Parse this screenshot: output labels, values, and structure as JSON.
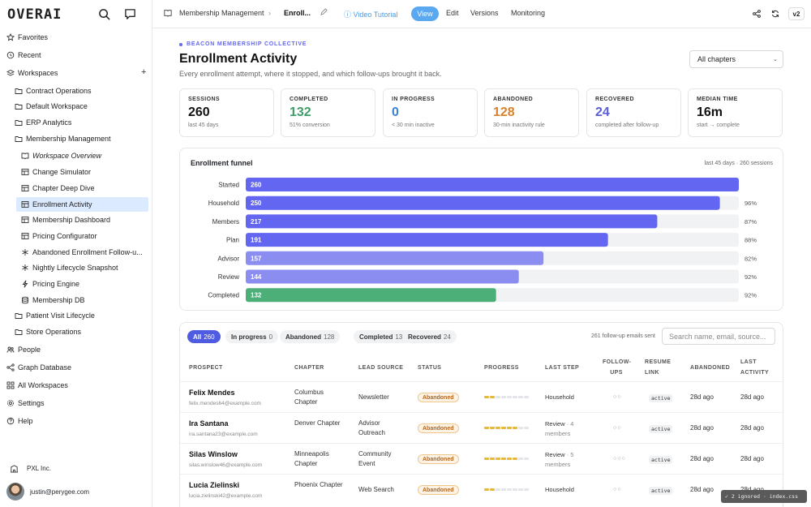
{
  "app": {
    "logo": "OVERAI"
  },
  "sidebar": {
    "items": [
      {
        "label": "Favorites",
        "icon": "star-icon"
      },
      {
        "label": "Recent",
        "icon": "clock-icon"
      },
      {
        "label": "Workspaces",
        "icon": "stack-icon"
      },
      {
        "label": "Contract Operations",
        "icon": "folder-icon"
      },
      {
        "label": "Default Workspace",
        "icon": "folder-icon"
      },
      {
        "label": "ERP Analytics",
        "icon": "folder-icon"
      },
      {
        "label": "Membership Management",
        "icon": "folder-icon"
      },
      {
        "label": "Workspace Overview",
        "icon": "book-icon"
      },
      {
        "label": "Change Simulator",
        "icon": "table-icon"
      },
      {
        "label": "Chapter Deep Dive",
        "icon": "table-icon"
      },
      {
        "label": "Enrollment Activity",
        "icon": "table-icon"
      },
      {
        "label": "Membership Dashboard",
        "icon": "table-icon"
      },
      {
        "label": "Pricing Configurator",
        "icon": "table-icon"
      },
      {
        "label": "Abandoned Enrollment Follow-u...",
        "icon": "workflow-icon"
      },
      {
        "label": "Nightly Lifecycle Snapshot",
        "icon": "workflow-icon"
      },
      {
        "label": "Pricing Engine",
        "icon": "bolt-icon"
      },
      {
        "label": "Membership DB",
        "icon": "database-icon"
      },
      {
        "label": "Patient Visit Lifecycle",
        "icon": "folder-icon"
      },
      {
        "label": "Store Operations",
        "icon": "folder-icon"
      },
      {
        "label": "People",
        "icon": "people-icon"
      },
      {
        "label": "Graph Database",
        "icon": "graph-icon"
      },
      {
        "label": "All Workspaces",
        "icon": "grid-icon"
      },
      {
        "label": "Settings",
        "icon": "gear-icon"
      },
      {
        "label": "Help",
        "icon": "help-icon"
      }
    ],
    "org": "PXL Inc.",
    "user": "justin@perygee.com"
  },
  "topbar": {
    "breadcrumb_parent": "Membership Management",
    "breadcrumb_current": "Enroll...",
    "video": "Video Tutorial",
    "tabs": [
      "View",
      "Edit",
      "Versions",
      "Monitoring"
    ],
    "version": "v2"
  },
  "header": {
    "eyebrow": "BEACON MEMBERSHIP COLLECTIVE",
    "title": "Enrollment Activity",
    "subtitle": "Every enrollment attempt, where it stopped, and which follow-ups brought it back.",
    "chapter_select": "All chapters"
  },
  "stats": [
    {
      "label": "SESSIONS",
      "value": "260",
      "sub": "last 45 days",
      "color": "#111111"
    },
    {
      "label": "COMPLETED",
      "value": "132",
      "sub": "51% conversion",
      "color": "#3f9d68"
    },
    {
      "label": "IN PROGRESS",
      "value": "0",
      "sub": "< 30 min inactive",
      "color": "#3b82d6"
    },
    {
      "label": "ABANDONED",
      "value": "128",
      "sub": "30-min inactivity rule",
      "color": "#d9822b"
    },
    {
      "label": "RECOVERED",
      "value": "24",
      "sub": "completed after follow-up",
      "color": "#5b5fd6"
    },
    {
      "label": "MEDIAN TIME",
      "value": "16m",
      "sub": "start → complete",
      "color": "#111111"
    }
  ],
  "funnel": {
    "title": "Enrollment funnel",
    "meta": "last 45 days · 260 sessions"
  },
  "chart_data": {
    "type": "bar",
    "orientation": "horizontal",
    "title": "Enrollment funnel",
    "categories": [
      "Started",
      "Household",
      "Members",
      "Plan",
      "Advisor",
      "Review",
      "Completed"
    ],
    "values": [
      260,
      250,
      217,
      191,
      157,
      144,
      132
    ],
    "step_conversion": [
      "",
      "96%",
      "87%",
      "88%",
      "82%",
      "92%",
      "92%"
    ],
    "xlim": [
      0,
      260
    ],
    "colors": {
      "bar": "#6366f1",
      "bar_fade": "#8b8ef0",
      "completed": "#4caf78",
      "track": "#f1f2f4"
    }
  },
  "filters": {
    "chips": [
      {
        "label": "All",
        "count": "260"
      },
      {
        "label": "In progress",
        "count": "0"
      },
      {
        "label": "Abandoned",
        "count": "128"
      },
      {
        "label": "Completed",
        "count": "132"
      },
      {
        "label": "Recovered",
        "count": "24"
      }
    ],
    "note": "261 follow-up emails sent",
    "search_placeholder": "Search name, email, source..."
  },
  "table": {
    "headers": [
      "PROSPECT",
      "CHAPTER",
      "LEAD SOURCE",
      "STATUS",
      "PROGRESS",
      "LAST STEP",
      "FOLLOW-UPS",
      "RESUME LINK",
      "ABANDONED",
      "LAST ACTIVITY"
    ],
    "rows": [
      {
        "name": "Felix Mendes",
        "email": "felix.mendes64@example.com",
        "chapter": "Columbus Chapter",
        "source": "Newsletter",
        "status": "Abandoned",
        "progress": 2,
        "last_step": "Household",
        "last_step_sub": "",
        "followups": "○○",
        "resume": "active",
        "abandoned": "28d ago",
        "last_activity": "28d ago"
      },
      {
        "name": "Ira Santana",
        "email": "ira.santana23@example.com",
        "chapter": "Denver Chapter",
        "source": "Advisor Outreach",
        "status": "Abandoned",
        "progress": 6,
        "last_step": "Review",
        "last_step_sub": "· 4 members",
        "followups": "○○",
        "resume": "active",
        "abandoned": "28d ago",
        "last_activity": "28d ago"
      },
      {
        "name": "Silas Winslow",
        "email": "silas.winslow46@example.com",
        "chapter": "Minneapolis Chapter",
        "source": "Community Event",
        "status": "Abandoned",
        "progress": 6,
        "last_step": "Review",
        "last_step_sub": "· 5 members",
        "followups": "○○○",
        "resume": "active",
        "abandoned": "28d ago",
        "last_activity": "28d ago"
      },
      {
        "name": "Lucia Zielinski",
        "email": "lucia.zielinski42@example.com",
        "chapter": "Phoenix Chapter",
        "source": "Web Search",
        "status": "Abandoned",
        "progress": 2,
        "last_step": "Household",
        "last_step_sub": "",
        "followups": "○○",
        "resume": "active",
        "abandoned": "28d ago",
        "last_activity": "28d ago"
      }
    ]
  },
  "toast": "✓ 2 ignored · index.css"
}
